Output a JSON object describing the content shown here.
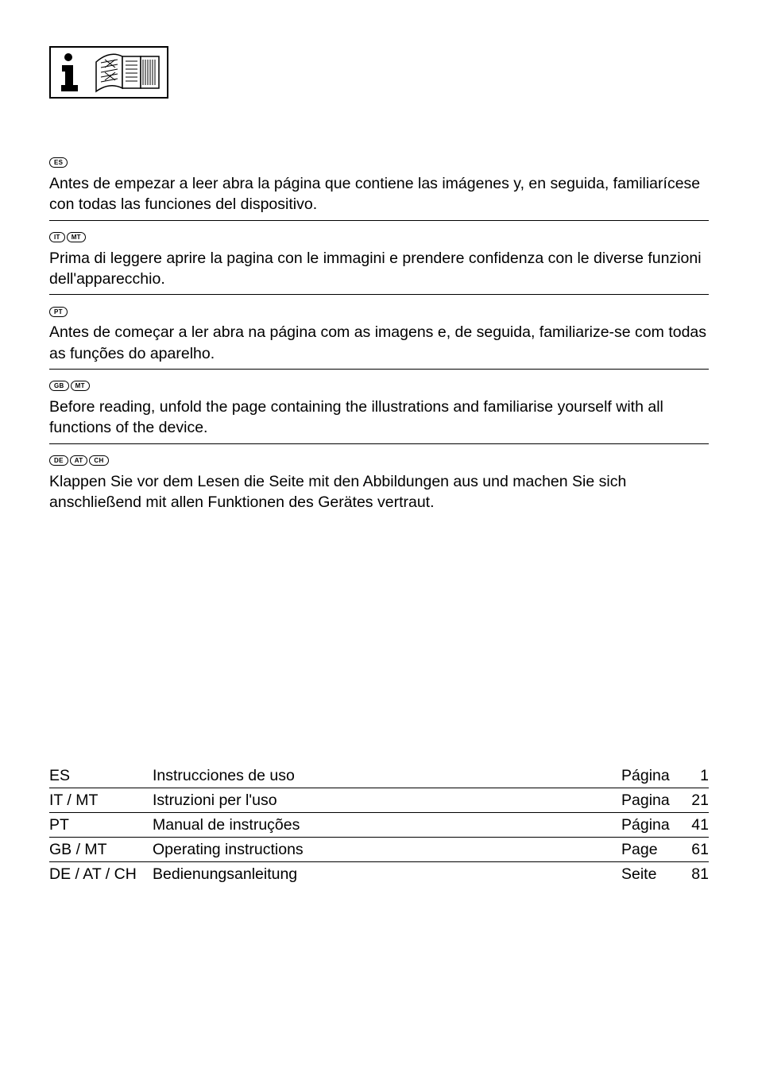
{
  "colors": {
    "fg": "#000000",
    "bg": "#ffffff",
    "rule": "#000000"
  },
  "typography": {
    "body_fontsize_pt": 15,
    "badge_fontsize_pt": 6,
    "line_height": 1.35
  },
  "sections": [
    {
      "badges": [
        "ES"
      ],
      "text": "Antes de empezar a leer abra la página que contiene las imágenes y, en seguida, familiarícese con todas las funciones del dispositivo."
    },
    {
      "badges": [
        "IT",
        "MT"
      ],
      "text": "Prima di leggere aprire la pagina con le immagini e prendere confidenza con le diverse funzioni dell'apparecchio."
    },
    {
      "badges": [
        "PT"
      ],
      "text": "Antes de começar a ler abra na página com as imagens e, de seguida, familiarize-se com todas as funções do aparelho."
    },
    {
      "badges": [
        "GB",
        "MT"
      ],
      "text": "Before reading, unfold the page containing the illustrations and familiarise yourself with all functions of the device."
    },
    {
      "badges": [
        "DE",
        "AT",
        "CH"
      ],
      "text": "Klappen Sie vor dem Lesen die Seite mit den Abbildungen aus und machen Sie sich anschließend mit allen Funktionen des Gerätes vertraut."
    }
  ],
  "toc": [
    {
      "code": "ES",
      "title": "Instrucciones de uso",
      "pagelabel": "Página",
      "pagenum": "1"
    },
    {
      "code": "IT / MT",
      "title": "Istruzioni per l'uso",
      "pagelabel": "Pagina",
      "pagenum": "21"
    },
    {
      "code": "PT",
      "title": "Manual de instruções",
      "pagelabel": "Página",
      "pagenum": "41"
    },
    {
      "code": "GB / MT",
      "title": "Operating instructions",
      "pagelabel": "Page",
      "pagenum": "61"
    },
    {
      "code": "DE / AT / CH",
      "title": "Bedienungsanleitung",
      "pagelabel": "Seite",
      "pagenum": "81"
    }
  ]
}
